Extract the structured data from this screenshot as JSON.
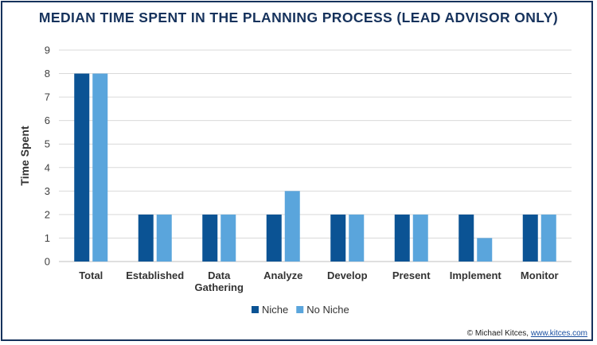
{
  "colors": {
    "frame": "#16325c",
    "niche": "#0b5394",
    "no_niche": "#5aa5dc",
    "grid": "#d9d9d9"
  },
  "credit": {
    "text": "© Michael Kitces,",
    "link": "www.kitces.com"
  },
  "chart_data": {
    "type": "bar",
    "title": "MEDIAN TIME SPENT IN THE PLANNING PROCESS (LEAD ADVISOR ONLY)",
    "xlabel": "",
    "ylabel": "Time Spent",
    "ylim": [
      0,
      9
    ],
    "yticks": [
      0,
      1,
      2,
      3,
      4,
      5,
      6,
      7,
      8,
      9
    ],
    "grid": true,
    "legend": "bottom",
    "categories": [
      [
        "Total"
      ],
      [
        "Established"
      ],
      [
        "Data",
        "Gathering"
      ],
      [
        "Analyze"
      ],
      [
        "Develop"
      ],
      [
        "Present"
      ],
      [
        "Implement"
      ],
      [
        "Monitor"
      ]
    ],
    "series": [
      {
        "name": "Niche",
        "color": "#0b5394",
        "values": [
          8,
          2,
          2,
          2,
          2,
          2,
          2,
          2
        ]
      },
      {
        "name": "No Niche",
        "color": "#5aa5dc",
        "values": [
          8,
          2,
          2,
          3,
          2,
          2,
          1,
          2
        ]
      }
    ]
  }
}
